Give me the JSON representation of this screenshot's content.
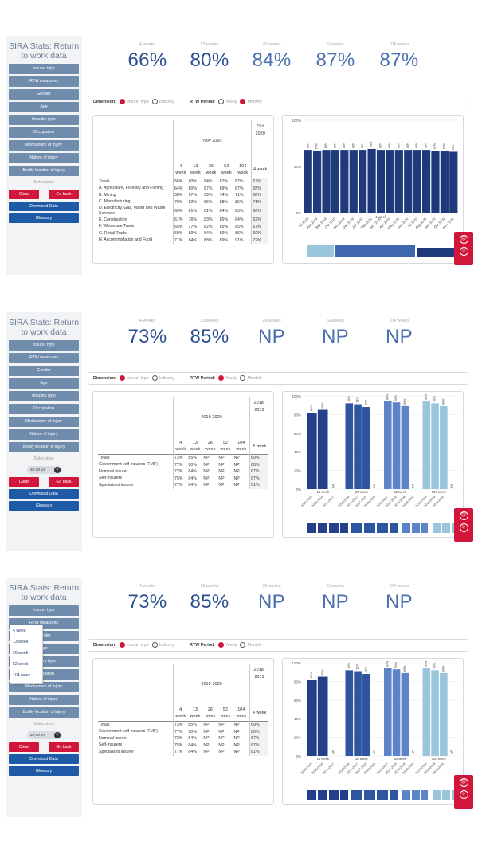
{
  "panels": [
    {
      "title": "SIRA Stats: Return to work data",
      "sidebar_items": [
        "Insurer type",
        "RTW measures",
        "Gender",
        "Age",
        "Industry type",
        "Occupation",
        "Mechanism of injury",
        "Nature of injury",
        "Bodily location of injury"
      ],
      "selections_label": "Selections",
      "chip": "",
      "clear": "Clear",
      "goback": "Go back",
      "download": "Download Data",
      "glossary": "Glossary",
      "kpis": [
        {
          "label": "4 weeks",
          "value": "66%"
        },
        {
          "label": "13 weeks",
          "value": "80%"
        },
        {
          "label": "26 weeks",
          "value": "84%"
        },
        {
          "label": "52weeks",
          "value": "87%"
        },
        {
          "label": "104 weeks",
          "value": "87%"
        }
      ],
      "dimension_label": "Dimension:",
      "dim_opt1": "Insurer type",
      "dim_opt2": "Industry",
      "period_label": "RTW Period:",
      "per_opt1": "Yearly",
      "per_opt2": "Monthly",
      "period_header": "Nov 2020",
      "period_header2": "Oct 2020",
      "col_headers": [
        "4 week",
        "13 week",
        "26 week",
        "52 week",
        "104 week",
        "4 week"
      ],
      "rows": [
        {
          "name": "Totals",
          "v": [
            "66%",
            "80%",
            "84%",
            "87%",
            "87%",
            "67%"
          ]
        },
        {
          "name": "A. Agriculture, Forestry and Fishing",
          "v": [
            "64%",
            "80%",
            "87%",
            "89%",
            "87%",
            "65%"
          ]
        },
        {
          "name": "B. Mining",
          "v": [
            "58%",
            "67%",
            "69%",
            "74%",
            "71%",
            "58%"
          ]
        },
        {
          "name": "C. Manufacturing",
          "v": [
            "70%",
            "82%",
            "86%",
            "88%",
            "86%",
            "71%"
          ]
        },
        {
          "name": "D. Electricity, Gas, Water and Waste Services",
          "v": [
            "65%",
            "81%",
            "81%",
            "84%",
            "85%",
            "66%"
          ]
        },
        {
          "name": "E. Construction",
          "v": [
            "61%",
            "76%",
            "83%",
            "85%",
            "84%",
            "62%"
          ]
        },
        {
          "name": "F. Wholesale Trade",
          "v": [
            "65%",
            "77%",
            "82%",
            "85%",
            "85%",
            "67%"
          ]
        },
        {
          "name": "G. Retail Trade",
          "v": [
            "69%",
            "80%",
            "84%",
            "86%",
            "86%",
            "69%"
          ]
        },
        {
          "name": "H. Accommodation and Food",
          "v": [
            "71%",
            "84%",
            "88%",
            "89%",
            "91%",
            "72%"
          ]
        }
      ]
    },
    {
      "title": "SIRA Stats: Return to work data",
      "sidebar_items": [
        "Insurer type",
        "RTW measures",
        "Gender",
        "Age",
        "Industry type",
        "Occupation",
        "Mechanism of injury",
        "Nature of injury",
        "Bodily location of injury"
      ],
      "selections_label": "Selections",
      "chip": "25-29 yrs",
      "clear": "Clear",
      "goback": "Go back",
      "download": "Download Data",
      "glossary": "Glossary",
      "kpis": [
        {
          "label": "4 weeks",
          "value": "73%"
        },
        {
          "label": "13 weeks",
          "value": "85%"
        },
        {
          "label": "26 weeks",
          "value": "NP"
        },
        {
          "label": "52weeks",
          "value": "NP"
        },
        {
          "label": "104 weeks",
          "value": "NP"
        }
      ],
      "dimension_label": "Dimension:",
      "dim_opt1": "Insurer type",
      "dim_opt2": "Industry",
      "period_label": "RTW Period:",
      "per_opt1": "Yearly",
      "per_opt2": "Monthly",
      "period_header": "2019-2020",
      "period_header2": "2018-2019",
      "col_headers": [
        "4 week",
        "13 week",
        "26 week",
        "52 week",
        "104 week",
        "4 week"
      ],
      "rows": [
        {
          "name": "Totals",
          "v": [
            "73%",
            "85%",
            "NP",
            "NP",
            "NP",
            "69%"
          ]
        },
        {
          "name": "Government self-insurers (TMF)",
          "v": [
            "77%",
            "90%",
            "NP",
            "NP",
            "NP",
            "80%"
          ]
        },
        {
          "name": "Nominal insurer",
          "v": [
            "72%",
            "84%",
            "NP",
            "NP",
            "NP",
            "67%"
          ]
        },
        {
          "name": "Self-insurers",
          "v": [
            "75%",
            "84%",
            "NP",
            "NP",
            "NP",
            "67%"
          ]
        },
        {
          "name": "Specialised insurer",
          "v": [
            "77%",
            "84%",
            "NP",
            "NP",
            "NP",
            "81%"
          ]
        }
      ]
    },
    {
      "title": "SIRA Stats: Return to work data",
      "sidebar_items": [
        "Insurer type",
        "RTW measures",
        "Gender",
        "Age",
        "Industry type",
        "Occupation",
        "Mechanism of injury",
        "Nature of injury",
        "Bodily location of injury"
      ],
      "selections_label": "Selections",
      "chip": "25-29 yrs",
      "clear": "Clear",
      "goback": "Go back",
      "download": "Download Data",
      "glossary": "Glossary",
      "kpis": [
        {
          "label": "4 weeks",
          "value": "73%"
        },
        {
          "label": "13 weeks",
          "value": "85%"
        },
        {
          "label": "26 weeks",
          "value": "NP"
        },
        {
          "label": "52weeks",
          "value": "NP"
        },
        {
          "label": "104 weeks",
          "value": "NP"
        }
      ],
      "dimension_label": "Dimension:",
      "dim_opt1": "Insurer type",
      "dim_opt2": "Industry",
      "period_label": "RTW Period:",
      "per_opt1": "Yearly",
      "per_opt2": "Monthly",
      "period_header": "2019-2020",
      "period_header2": "2018-2019",
      "col_headers": [
        "4 week",
        "13 week",
        "26 week",
        "52 week",
        "104 week",
        "4 week"
      ],
      "rows": [
        {
          "name": "Totals",
          "v": [
            "73%",
            "85%",
            "NP",
            "NP",
            "NP",
            "69%"
          ]
        },
        {
          "name": "Government self-insurers (TMF)",
          "v": [
            "77%",
            "90%",
            "NP",
            "NP",
            "NP",
            "80%"
          ]
        },
        {
          "name": "Nominal insurer",
          "v": [
            "72%",
            "84%",
            "NP",
            "NP",
            "NP",
            "67%"
          ]
        },
        {
          "name": "Self-insurers",
          "v": [
            "75%",
            "84%",
            "NP",
            "NP",
            "NP",
            "67%"
          ]
        },
        {
          "name": "Specialised insurer",
          "v": [
            "77%",
            "84%",
            "NP",
            "NP",
            "NP",
            "81%"
          ]
        }
      ]
    }
  ],
  "dropdown_options": [
    "4 week",
    "13 week",
    "26 week",
    "52 week",
    "104 week"
  ],
  "colors": {
    "accent_red": "#d2153a",
    "navy": "#1f3a7a",
    "mid_blue": "#3f67b0",
    "light_blue": "#9ac6dc",
    "sidebar_button": "#6f8cad"
  },
  "chart_data": [
    {
      "type": "bar",
      "ylim": [
        0,
        100
      ],
      "yticks": [
        "0%",
        "50%",
        "100%"
      ],
      "xlabel": "4 week",
      "categories": [
        "Jul 2019",
        "Aug 2019",
        "Sep 2019",
        "Oct 2019",
        "Nov 2019",
        "Dec 2019",
        "Jan 2020",
        "Feb 2020",
        "Mar 2020",
        "Apr 2020",
        "May 2020",
        "Jun 2020",
        "Jul 2020",
        "Aug 2020",
        "Sep 2020",
        "Oct 2020",
        "Nov 2020"
      ],
      "values": [
        68,
        67,
        68,
        68,
        68,
        68,
        68,
        69,
        68,
        68,
        68,
        68,
        68,
        68,
        67,
        67,
        66
      ],
      "value_labels": [
        "68%",
        "67%",
        "68%",
        "68%",
        "68%",
        "68%",
        "68%",
        "69%",
        "68%",
        "68%",
        "68%",
        "68%",
        "68%",
        "68%",
        "67%",
        "67%",
        "66%"
      ]
    },
    {
      "type": "bar",
      "ylim": [
        0,
        100
      ],
      "yticks": [
        "0%",
        "20%",
        "40%",
        "60%",
        "80%",
        "100%"
      ],
      "groups": [
        "13 week",
        "26 week",
        "52 week",
        "104 week"
      ],
      "categories": [
        "2014-2015",
        "2015-2016",
        "2016-2017",
        "2017-2018",
        "2018-2019",
        "2019-2020"
      ],
      "series": [
        {
          "group": "13 week",
          "values": [
            82,
            85,
            null,
            null,
            null,
            null
          ]
        },
        {
          "group": "26 week",
          "values": [
            null,
            92,
            91,
            88,
            null,
            null
          ]
        },
        {
          "group": "52 week",
          "values": [
            null,
            null,
            94,
            93,
            89,
            null
          ]
        },
        {
          "group": "104 week",
          "values": [
            null,
            null,
            null,
            94,
            92,
            89
          ]
        }
      ],
      "np_label": "NP"
    }
  ]
}
